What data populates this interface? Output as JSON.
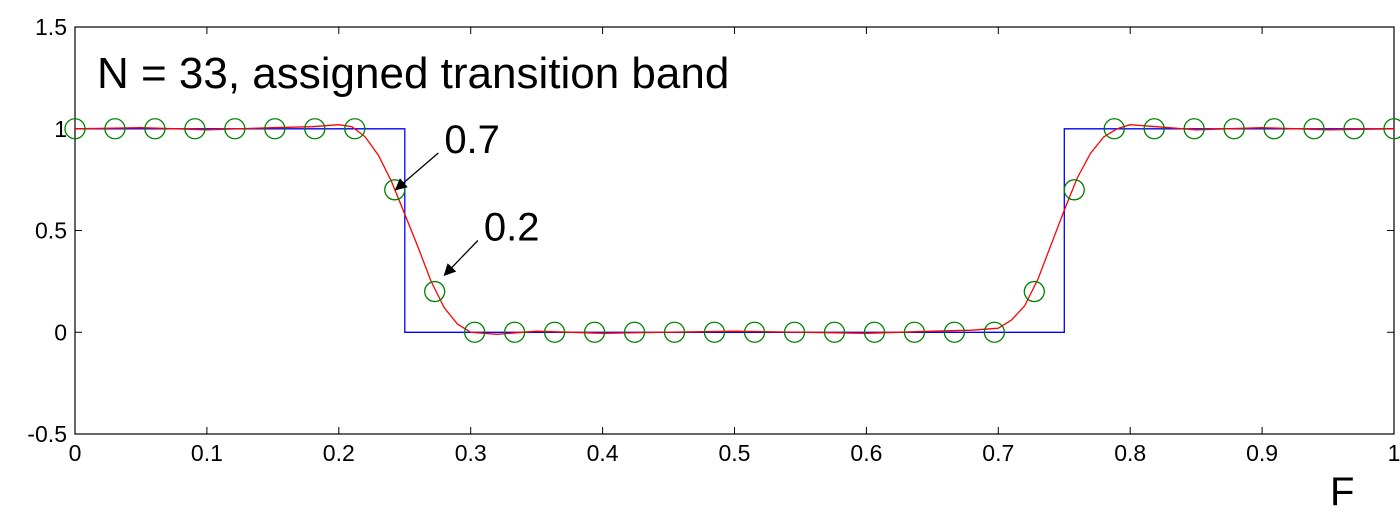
{
  "chart_data": {
    "type": "line",
    "title": "N = 33, assigned transition band",
    "xlabel": "F",
    "ylabel": "",
    "xlim": [
      0,
      1
    ],
    "ylim": [
      -0.5,
      1.5
    ],
    "x_ticks": [
      0,
      0.1,
      0.2,
      0.3,
      0.4,
      0.5,
      0.6,
      0.7,
      0.8,
      0.9,
      1
    ],
    "x_tick_labels": [
      "0",
      "0.1",
      "0.2",
      "0.3",
      "0.4",
      "0.5",
      "0.6",
      "0.7",
      "0.8",
      "0.9",
      "1"
    ],
    "y_ticks": [
      -0.5,
      0,
      0.5,
      1,
      1.5
    ],
    "y_tick_labels": [
      "-0.5",
      "0",
      "0.5",
      "1",
      "1.5"
    ],
    "grid": false,
    "series": [
      {
        "color": "#0000ff",
        "style": "line",
        "x": [
          0,
          0.25,
          0.25,
          0.75,
          0.75,
          1
        ],
        "y": [
          1,
          1,
          0,
          0,
          1,
          1
        ]
      },
      {
        "color": "#ff0000",
        "style": "line",
        "x": [
          0,
          0.05,
          0.1,
          0.15,
          0.18,
          0.2,
          0.21,
          0.22,
          0.23,
          0.24,
          0.25,
          0.26,
          0.27,
          0.28,
          0.29,
          0.3,
          0.32,
          0.35,
          0.4,
          0.5,
          0.6,
          0.65,
          0.68,
          0.7,
          0.71,
          0.72,
          0.73,
          0.74,
          0.75,
          0.76,
          0.77,
          0.78,
          0.79,
          0.8,
          0.82,
          0.85,
          0.9,
          0.95,
          1
        ],
        "y": [
          1,
          1.005,
          0.995,
          1.005,
          1.01,
          1.02,
          1.01,
          0.96,
          0.87,
          0.74,
          0.58,
          0.42,
          0.25,
          0.12,
          0.04,
          0.0,
          -0.01,
          0.005,
          -0.005,
          0.005,
          -0.005,
          0.005,
          0.01,
          0.02,
          0.06,
          0.13,
          0.26,
          0.43,
          0.6,
          0.76,
          0.88,
          0.96,
          1.0,
          1.02,
          1.01,
          0.995,
          1.005,
          0.995,
          1
        ]
      },
      {
        "color": "#008000",
        "style": "markers",
        "marker": "circle",
        "x": [
          0,
          0.0303,
          0.0606,
          0.0909,
          0.1212,
          0.1515,
          0.1818,
          0.2121,
          0.2424,
          0.2727,
          0.303,
          0.3333,
          0.3636,
          0.3939,
          0.4242,
          0.4545,
          0.4848,
          0.5152,
          0.5455,
          0.5758,
          0.6061,
          0.6364,
          0.6667,
          0.697,
          0.7273,
          0.7576,
          0.7879,
          0.8182,
          0.8485,
          0.8788,
          0.9091,
          0.9394,
          0.9697,
          1
        ],
        "y": [
          1,
          1,
          1,
          1,
          1,
          1,
          1,
          1,
          0.7,
          0.2,
          0,
          0,
          0,
          0,
          0,
          0,
          0,
          0,
          0,
          0,
          0,
          0,
          0,
          0,
          0.2,
          0.7,
          1,
          1,
          1,
          1,
          1,
          1,
          1,
          1
        ]
      }
    ],
    "annotations": [
      {
        "text": "0.7",
        "arrow_to": [
          0.243,
          0.7
        ],
        "text_at": [
          0.28,
          0.93
        ]
      },
      {
        "text": "0.2",
        "arrow_to": [
          0.28,
          0.28
        ],
        "text_at": [
          0.31,
          0.5
        ]
      }
    ]
  }
}
